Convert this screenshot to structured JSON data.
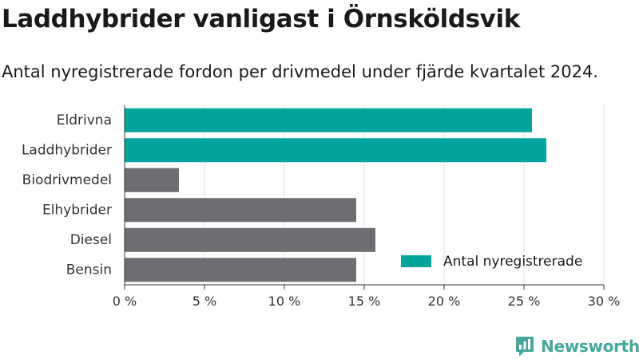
{
  "header": {
    "title": "Laddhybrider vanligast i Örnsköldsvik",
    "subtitle": "Antal nyregistrerade fordon per drivmedel under fjärde kvartalet 2024."
  },
  "brand": {
    "name": "Newsworthy",
    "color": "#46a89c",
    "logo_icon": "bar-chart-speech-bubble-icon"
  },
  "chart_data": {
    "type": "bar",
    "orientation": "horizontal",
    "categories": [
      "Eldrivna",
      "Laddhybrider",
      "Biodrivmedel",
      "Elhybrider",
      "Diesel",
      "Bensin"
    ],
    "series": [
      {
        "name": "Antal nyregistrerade",
        "values": [
          25.5,
          26.4,
          3.4,
          14.5,
          15.7,
          14.5
        ],
        "colors": [
          "#00a49a",
          "#00a49a",
          "#6e6d72",
          "#6e6d72",
          "#6e6d72",
          "#6e6d72"
        ]
      }
    ],
    "xlim": [
      0,
      30
    ],
    "x_ticks": [
      0,
      5,
      10,
      15,
      20,
      25,
      30
    ],
    "x_tick_labels": [
      "0 %",
      "5 %",
      "10 %",
      "15 %",
      "20 %",
      "25 %",
      "30 %"
    ],
    "xlabel": "",
    "ylabel": "",
    "grid": "vertical",
    "legend": {
      "position": "bottom-right",
      "entries": [
        {
          "label": "Antal nyregistrerade",
          "color": "#00a49a"
        }
      ]
    },
    "colors": {
      "highlight": "#00a49a",
      "other": "#6e6d72",
      "grid": "#e3e3e3",
      "axis": "#333333"
    }
  }
}
